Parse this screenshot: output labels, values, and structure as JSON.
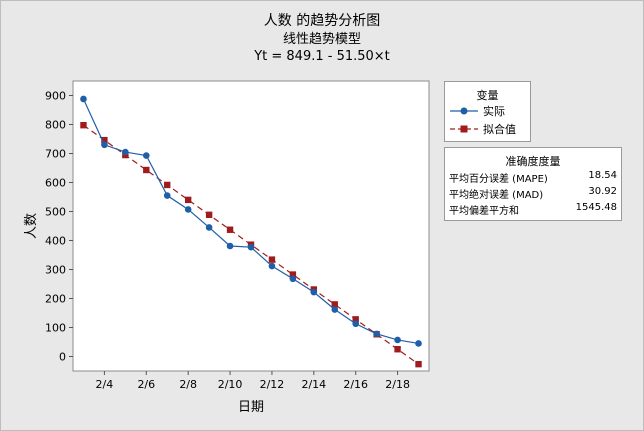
{
  "header": {
    "title": "人数 的趋势分析图",
    "subtitle": "线性趋势模型",
    "formula": "Yt = 849.1 - 51.50×t"
  },
  "legend": {
    "title": "变量",
    "items": [
      {
        "label": "实际",
        "color": "#1f5fa8",
        "marker": "circle"
      },
      {
        "label": "拟合值",
        "color": "#a01c1c",
        "marker": "square"
      }
    ]
  },
  "accuracy": {
    "title": "准确度度量",
    "rows": [
      {
        "label": "平均百分误差 (MAPE)",
        "value": "18.54"
      },
      {
        "label": "平均绝对误差 (MAD)",
        "value": "30.92"
      },
      {
        "label": "平均偏差平方和",
        "value": "1545.48"
      }
    ]
  },
  "chart_data": {
    "type": "line",
    "xlabel": "日期",
    "ylabel": "人数",
    "ylim": [
      -50,
      950
    ],
    "yticks": [
      0,
      100,
      200,
      300,
      400,
      500,
      600,
      700,
      800,
      900
    ],
    "xticks": [
      "2/4",
      "2/6",
      "2/8",
      "2/10",
      "2/12",
      "2/14",
      "2/16",
      "2/18"
    ],
    "x_index_of_ticks": [
      2,
      4,
      6,
      8,
      10,
      12,
      14,
      16
    ],
    "x": [
      1,
      2,
      3,
      4,
      5,
      6,
      7,
      8,
      9,
      10,
      11,
      12,
      13,
      14,
      15,
      16,
      17
    ],
    "series": [
      {
        "name": "实际",
        "color": "#1f5fa8",
        "marker": "circle",
        "dash": false,
        "values": [
          888,
          730,
          705,
          693,
          555,
          507,
          445,
          381,
          377,
          312,
          268,
          222,
          162,
          113,
          78,
          57,
          45
        ]
      },
      {
        "name": "拟合值",
        "color": "#a01c1c",
        "marker": "square",
        "dash": true,
        "values": [
          797.6,
          746.1,
          694.6,
          643.1,
          591.6,
          540.1,
          488.6,
          437.1,
          385.6,
          334.1,
          282.6,
          231.1,
          179.6,
          128.1,
          76.6,
          25.1,
          -26.4
        ]
      }
    ],
    "grid": false,
    "legend_position": "right"
  }
}
